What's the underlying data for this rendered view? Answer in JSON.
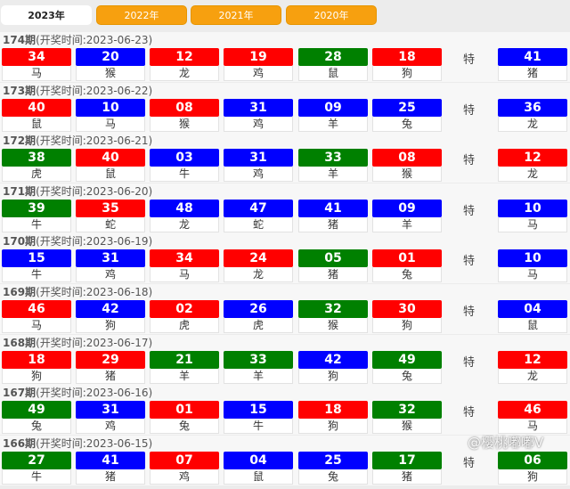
{
  "tabs": [
    {
      "label": "2023年",
      "active": true
    },
    {
      "label": "2022年"
    },
    {
      "label": "2021年"
    },
    {
      "label": "2020年"
    }
  ],
  "colors": {
    "r": "#ff0000",
    "b": "#0000ff",
    "g": "#008000"
  },
  "special_label": "特",
  "draws": [
    {
      "period": "174期",
      "time": "(开奖时间:2023-06-23)",
      "balls": [
        [
          "34",
          "r",
          "马"
        ],
        [
          "20",
          "b",
          "猴"
        ],
        [
          "12",
          "r",
          "龙"
        ],
        [
          "19",
          "r",
          "鸡"
        ],
        [
          "28",
          "g",
          "鼠"
        ],
        [
          "18",
          "r",
          "狗"
        ]
      ],
      "special": [
        "41",
        "b",
        "猪"
      ]
    },
    {
      "period": "173期",
      "time": "(开奖时间:2023-06-22)",
      "balls": [
        [
          "40",
          "r",
          "鼠"
        ],
        [
          "10",
          "b",
          "马"
        ],
        [
          "08",
          "r",
          "猴"
        ],
        [
          "31",
          "b",
          "鸡"
        ],
        [
          "09",
          "b",
          "羊"
        ],
        [
          "25",
          "b",
          "兔"
        ]
      ],
      "special": [
        "36",
        "b",
        "龙"
      ]
    },
    {
      "period": "172期",
      "time": "(开奖时间:2023-06-21)",
      "balls": [
        [
          "38",
          "g",
          "虎"
        ],
        [
          "40",
          "r",
          "鼠"
        ],
        [
          "03",
          "b",
          "牛"
        ],
        [
          "31",
          "b",
          "鸡"
        ],
        [
          "33",
          "g",
          "羊"
        ],
        [
          "08",
          "r",
          "猴"
        ]
      ],
      "special": [
        "12",
        "r",
        "龙"
      ]
    },
    {
      "period": "171期",
      "time": "(开奖时间:2023-06-20)",
      "balls": [
        [
          "39",
          "g",
          "牛"
        ],
        [
          "35",
          "r",
          "蛇"
        ],
        [
          "48",
          "b",
          "龙"
        ],
        [
          "47",
          "b",
          "蛇"
        ],
        [
          "41",
          "b",
          "猪"
        ],
        [
          "09",
          "b",
          "羊"
        ]
      ],
      "special": [
        "10",
        "b",
        "马"
      ]
    },
    {
      "period": "170期",
      "time": "(开奖时间:2023-06-19)",
      "balls": [
        [
          "15",
          "b",
          "牛"
        ],
        [
          "31",
          "b",
          "鸡"
        ],
        [
          "34",
          "r",
          "马"
        ],
        [
          "24",
          "r",
          "龙"
        ],
        [
          "05",
          "g",
          "猪"
        ],
        [
          "01",
          "r",
          "兔"
        ]
      ],
      "special": [
        "10",
        "b",
        "马"
      ]
    },
    {
      "period": "169期",
      "time": "(开奖时间:2023-06-18)",
      "balls": [
        [
          "46",
          "r",
          "马"
        ],
        [
          "42",
          "b",
          "狗"
        ],
        [
          "02",
          "r",
          "虎"
        ],
        [
          "26",
          "b",
          "虎"
        ],
        [
          "32",
          "g",
          "猴"
        ],
        [
          "30",
          "r",
          "狗"
        ]
      ],
      "special": [
        "04",
        "b",
        "鼠"
      ]
    },
    {
      "period": "168期",
      "time": "(开奖时间:2023-06-17)",
      "balls": [
        [
          "18",
          "r",
          "狗"
        ],
        [
          "29",
          "r",
          "猪"
        ],
        [
          "21",
          "g",
          "羊"
        ],
        [
          "33",
          "g",
          "羊"
        ],
        [
          "42",
          "b",
          "狗"
        ],
        [
          "49",
          "g",
          "兔"
        ]
      ],
      "special": [
        "12",
        "r",
        "龙"
      ]
    },
    {
      "period": "167期",
      "time": "(开奖时间:2023-06-16)",
      "balls": [
        [
          "49",
          "g",
          "兔"
        ],
        [
          "31",
          "b",
          "鸡"
        ],
        [
          "01",
          "r",
          "兔"
        ],
        [
          "15",
          "b",
          "牛"
        ],
        [
          "18",
          "r",
          "狗"
        ],
        [
          "32",
          "g",
          "猴"
        ]
      ],
      "special": [
        "46",
        "r",
        "马"
      ]
    },
    {
      "period": "166期",
      "time": "(开奖时间:2023-06-15)",
      "balls": [
        [
          "27",
          "g",
          "牛"
        ],
        [
          "41",
          "b",
          "猪"
        ],
        [
          "07",
          "r",
          "鸡"
        ],
        [
          "04",
          "b",
          "鼠"
        ],
        [
          "25",
          "b",
          "兔"
        ],
        [
          "17",
          "g",
          "猪"
        ]
      ],
      "special": [
        "06",
        "g",
        "狗"
      ]
    }
  ],
  "watermark": "@樱桃嘟嘟V"
}
